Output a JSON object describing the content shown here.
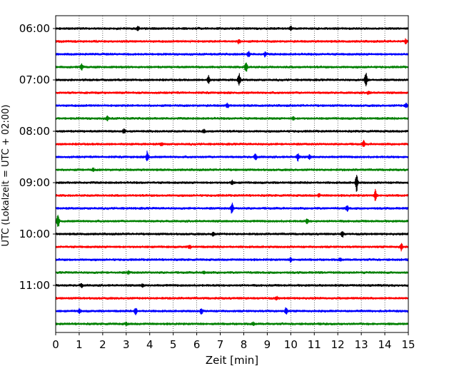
{
  "chart_data": {
    "type": "line",
    "title": "",
    "xlabel": "Zeit  [min]",
    "ylabel": "UTC (Lokalzeit = UTC + 02:00)",
    "xlim": [
      0,
      15
    ],
    "x_ticks": [
      "0",
      "1",
      "2",
      "3",
      "4",
      "5",
      "6",
      "7",
      "8",
      "9",
      "10",
      "11",
      "12",
      "13",
      "14",
      "15"
    ],
    "y_tick_labels": [
      {
        "label": "06:00",
        "row": 0
      },
      {
        "label": "07:00",
        "row": 4
      },
      {
        "label": "08:00",
        "row": 8
      },
      {
        "label": "09:00",
        "row": 12
      },
      {
        "label": "10:00",
        "row": 16
      },
      {
        "label": "11:00",
        "row": 20
      }
    ],
    "grid": "vertical dotted",
    "row_minutes": 15,
    "trace_colors": [
      "#000000",
      "#ff0000",
      "#0000ff",
      "#008000"
    ],
    "rows": [
      {
        "start": "06:00",
        "events": [
          {
            "t": 3.5,
            "a": 3
          },
          {
            "t": 10.0,
            "a": 3
          }
        ]
      },
      {
        "start": "06:15",
        "events": [
          {
            "t": 7.8,
            "a": 3
          },
          {
            "t": 14.9,
            "a": 3
          }
        ]
      },
      {
        "start": "06:30",
        "events": [
          {
            "t": 8.2,
            "a": 4
          },
          {
            "t": 8.9,
            "a": 3
          }
        ]
      },
      {
        "start": "06:45",
        "events": [
          {
            "t": 8.1,
            "a": 8
          },
          {
            "t": 1.1,
            "a": 4
          }
        ]
      },
      {
        "start": "07:00",
        "events": [
          {
            "t": 6.5,
            "a": 5
          },
          {
            "t": 7.8,
            "a": 10
          },
          {
            "t": 13.2,
            "a": 11
          }
        ]
      },
      {
        "start": "07:15",
        "events": [
          {
            "t": 13.3,
            "a": 2
          }
        ]
      },
      {
        "start": "07:30",
        "events": [
          {
            "t": 7.3,
            "a": 3
          },
          {
            "t": 14.9,
            "a": 3
          }
        ]
      },
      {
        "start": "07:45",
        "events": [
          {
            "t": 2.2,
            "a": 3
          },
          {
            "t": 10.1,
            "a": 2
          }
        ]
      },
      {
        "start": "08:00",
        "events": [
          {
            "t": 2.9,
            "a": 3
          },
          {
            "t": 6.3,
            "a": 2
          }
        ]
      },
      {
        "start": "08:15",
        "events": [
          {
            "t": 4.5,
            "a": 2
          },
          {
            "t": 13.1,
            "a": 4
          }
        ]
      },
      {
        "start": "08:30",
        "events": [
          {
            "t": 3.9,
            "a": 8
          },
          {
            "t": 8.5,
            "a": 5
          },
          {
            "t": 10.3,
            "a": 5
          },
          {
            "t": 10.8,
            "a": 3
          }
        ]
      },
      {
        "start": "08:45",
        "events": [
          {
            "t": 1.6,
            "a": 2
          }
        ]
      },
      {
        "start": "09:00",
        "events": [
          {
            "t": 7.5,
            "a": 3
          },
          {
            "t": 12.8,
            "a": 12
          }
        ]
      },
      {
        "start": "09:15",
        "events": [
          {
            "t": 11.2,
            "a": 2
          },
          {
            "t": 13.6,
            "a": 8
          }
        ]
      },
      {
        "start": "09:30",
        "events": [
          {
            "t": 7.5,
            "a": 8
          },
          {
            "t": 12.4,
            "a": 4
          }
        ]
      },
      {
        "start": "09:45",
        "events": [
          {
            "t": 0.1,
            "a": 10
          },
          {
            "t": 10.7,
            "a": 3
          }
        ]
      },
      {
        "start": "10:00",
        "events": [
          {
            "t": 6.7,
            "a": 3
          },
          {
            "t": 12.2,
            "a": 4
          }
        ]
      },
      {
        "start": "10:15",
        "events": [
          {
            "t": 14.7,
            "a": 5
          },
          {
            "t": 5.7,
            "a": 2
          }
        ]
      },
      {
        "start": "10:30",
        "events": [
          {
            "t": 10.0,
            "a": 3
          },
          {
            "t": 12.1,
            "a": 2
          }
        ]
      },
      {
        "start": "10:45",
        "events": [
          {
            "t": 3.1,
            "a": 2
          },
          {
            "t": 6.3,
            "a": 2
          }
        ]
      },
      {
        "start": "11:00",
        "events": [
          {
            "t": 1.1,
            "a": 3
          },
          {
            "t": 3.7,
            "a": 2
          }
        ]
      },
      {
        "start": "11:15",
        "events": [
          {
            "t": 9.4,
            "a": 2
          }
        ]
      },
      {
        "start": "11:30",
        "events": [
          {
            "t": 3.4,
            "a": 5
          },
          {
            "t": 6.2,
            "a": 4
          },
          {
            "t": 9.8,
            "a": 5
          },
          {
            "t": 1.0,
            "a": 3
          }
        ]
      },
      {
        "start": "11:45",
        "events": [
          {
            "t": 3.0,
            "a": 2
          },
          {
            "t": 8.4,
            "a": 2
          }
        ]
      }
    ]
  }
}
